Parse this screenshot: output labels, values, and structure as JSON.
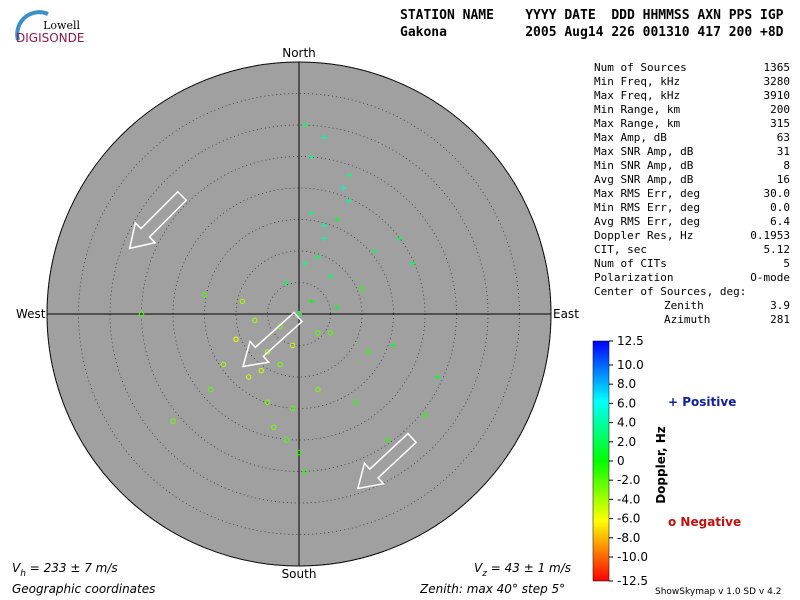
{
  "logo": {
    "top": "Lowell",
    "bottom": "DIGISONDE"
  },
  "header": {
    "line1": "STATION NAME    YYYY DATE  DDD HHMMSS AXN PPS IGP",
    "line2": "Gakona          2005 Aug14 226 001310 417 200 +8D"
  },
  "stats": [
    [
      "Num of Sources",
      "1365"
    ],
    [
      "Min Freq, kHz",
      "3280"
    ],
    [
      "Max Freq, kHz",
      "3910"
    ],
    [
      "Min Range, km",
      "200"
    ],
    [
      "Max Range, km",
      "315"
    ],
    [
      "Max Amp, dB",
      "63"
    ],
    [
      "Max SNR Amp, dB",
      "31"
    ],
    [
      "Min SNR Amp, dB",
      "8"
    ],
    [
      "Avg SNR Amp, dB",
      "16"
    ],
    [
      "Max RMS Err, deg",
      "30.0"
    ],
    [
      "Min RMS Err, deg",
      "0.0"
    ],
    [
      "Avg RMS Err, deg",
      "6.4"
    ],
    [
      "Doppler Res, Hz",
      "0.1953"
    ],
    [
      "CIT, sec",
      "5.12"
    ],
    [
      "Num of CITs",
      "5"
    ],
    [
      "Polarization",
      "O-mode"
    ]
  ],
  "center": {
    "title": "Center of Sources, deg:",
    "rows": [
      [
        "Zenith",
        "3.9"
      ],
      [
        "Azimuth",
        "281"
      ]
    ]
  },
  "footer": {
    "vh": {
      "symbol": "V",
      "sub": "h",
      "text": " = 233 ± 7 m/s"
    },
    "vz": {
      "symbol": "V",
      "sub": "z",
      "text": " = 43 ± 1 m/s"
    },
    "coords": "Geographic coordinates",
    "zenith": "Zenith: max 40°  step 5°",
    "version": "ShowSkymap v 1.0  SD v 4.2"
  },
  "chart_data": {
    "type": "polar-scatter",
    "north": "North",
    "south": "South",
    "east": "East",
    "west": "West",
    "rlim": [
      0,
      40
    ],
    "rticks": [
      5,
      10,
      15,
      20,
      25,
      30,
      35,
      40
    ],
    "sources": {
      "x": [
        -2,
        1,
        3,
        -5,
        4,
        6,
        -8,
        2,
        -3,
        0,
        5,
        8,
        10,
        -10,
        12,
        -12,
        3,
        -1,
        7,
        -6,
        15,
        -15,
        2,
        4,
        -4,
        9,
        1,
        -2,
        6,
        -7,
        11,
        18,
        -20,
        -25,
        22,
        0,
        3,
        -3,
        5,
        14,
        -9,
        2,
        -1,
        16,
        -14,
        8,
        1,
        4,
        -5,
        20
      ],
      "y": [
        5,
        8,
        -3,
        -6,
        12,
        15,
        -10,
        2,
        -2,
        0,
        6,
        18,
        4,
        -4,
        10,
        -8,
        -12,
        -15,
        20,
        -9,
        -5,
        3,
        25,
        14,
        -18,
        -14,
        30,
        -20,
        1,
        -1,
        -6,
        8,
        -17,
        0,
        -10,
        -22,
        9,
        -8,
        -3,
        -20,
        2,
        16,
        -5,
        12,
        -12,
        22,
        -25,
        28,
        -14,
        -16
      ],
      "doppler": [
        2,
        3,
        -2,
        -4,
        4,
        1,
        -5,
        0.5,
        -3,
        1,
        2,
        3,
        -1,
        -6,
        2,
        -4,
        -3,
        -2,
        5,
        -5,
        1,
        -2,
        3,
        4,
        -3,
        -1,
        2,
        -2,
        1,
        -4,
        -1,
        2,
        -3,
        -2,
        1,
        -1,
        2,
        -3,
        -2,
        -1,
        -4,
        3,
        -5,
        2,
        -2,
        3,
        -1,
        4,
        -3,
        -1
      ]
    },
    "colorbar": {
      "label": "Doppler, Hz",
      "clim": [
        -12.5,
        12.5
      ],
      "ticks": [
        12.5,
        {
          "value": 10,
          "label": "10.0"
        },
        {
          "value": 8,
          "label": "8.0"
        },
        {
          "value": 6,
          "label": "6.0"
        },
        {
          "value": 4,
          "label": "4.0"
        },
        {
          "value": 2,
          "label": "2.0"
        },
        0,
        {
          "value": -2,
          "label": "-2.0"
        },
        {
          "value": -4,
          "label": "-4.0"
        },
        {
          "value": -6,
          "label": "-6.0"
        },
        {
          "value": -8,
          "label": "-8.0"
        },
        {
          "value": -10,
          "label": "-10.0"
        },
        -12.5
      ]
    },
    "legend": {
      "positive": "+ Positive",
      "negative": "o Negative"
    }
  }
}
